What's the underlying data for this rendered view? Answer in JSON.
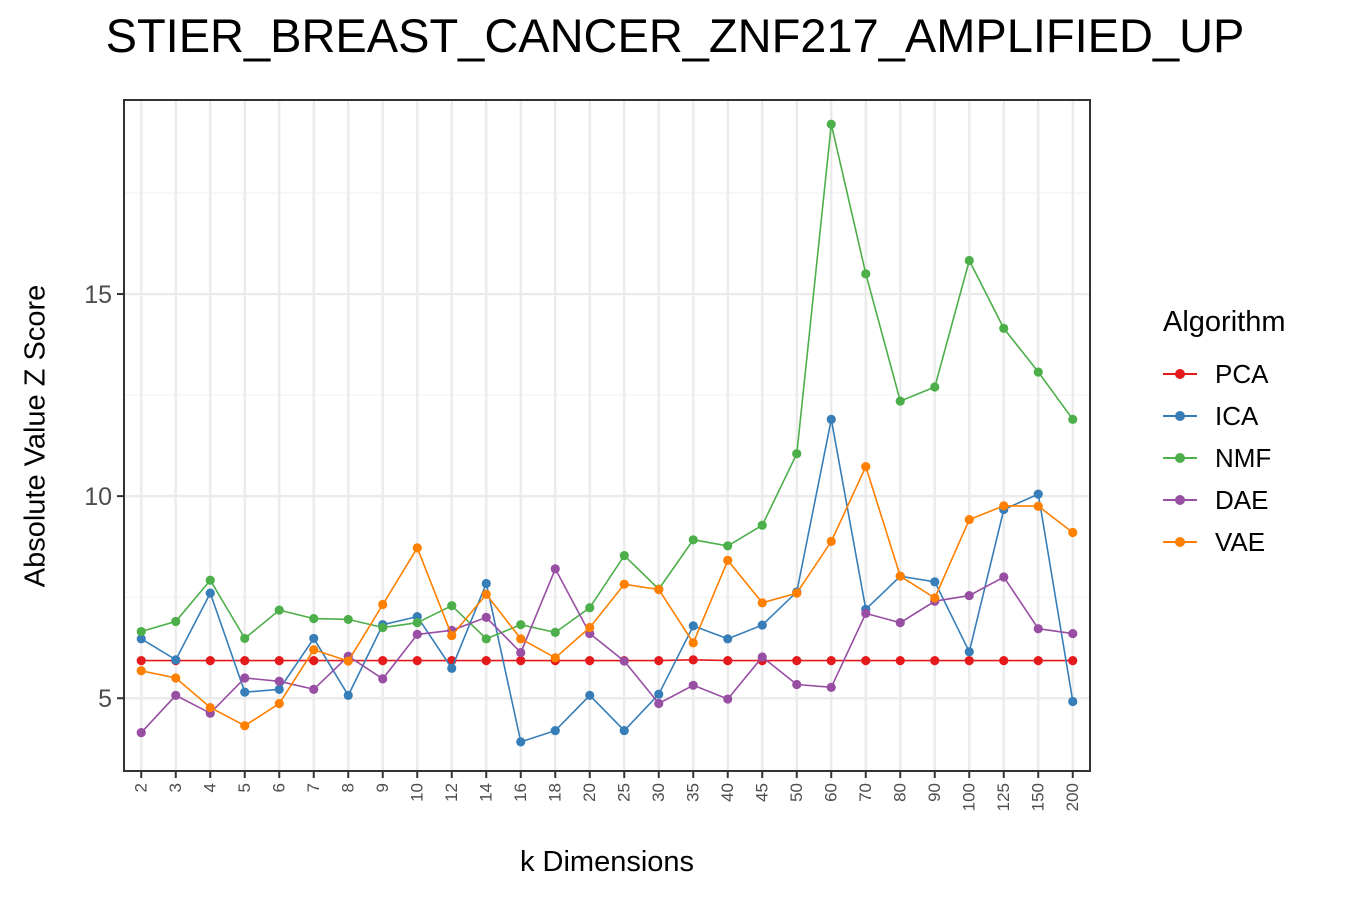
{
  "chart_data": {
    "type": "line",
    "title": "STIER_BREAST_CANCER_ZNF217_AMPLIFIED_UP",
    "xlabel": "k Dimensions",
    "ylabel": "Absolute Value Z Score",
    "categories": [
      "2",
      "3",
      "4",
      "5",
      "6",
      "7",
      "8",
      "9",
      "10",
      "12",
      "14",
      "16",
      "18",
      "20",
      "25",
      "30",
      "35",
      "40",
      "45",
      "50",
      "60",
      "70",
      "80",
      "90",
      "100",
      "125",
      "150",
      "200"
    ],
    "ylim": [
      3.2,
      19.8
    ],
    "yticks": [
      5,
      10,
      15
    ],
    "grid": true,
    "legend_title": "Algorithm",
    "legend_position": "right",
    "series": [
      {
        "name": "PCA",
        "color": "#e41a1c",
        "values": [
          5.93,
          5.93,
          5.93,
          5.93,
          5.93,
          5.93,
          5.93,
          5.93,
          5.93,
          5.93,
          5.93,
          5.93,
          5.93,
          5.93,
          5.93,
          5.93,
          5.95,
          5.93,
          5.93,
          5.93,
          5.93,
          5.93,
          5.93,
          5.93,
          5.93,
          5.93,
          5.93,
          5.93
        ]
      },
      {
        "name": "ICA",
        "color": "#377eb8",
        "values": [
          6.47,
          5.95,
          7.6,
          5.15,
          5.22,
          6.48,
          5.07,
          6.82,
          7.02,
          5.74,
          7.84,
          3.92,
          4.2,
          5.07,
          4.2,
          5.1,
          6.79,
          6.47,
          6.81,
          7.63,
          11.9,
          7.2,
          8.02,
          7.88,
          6.15,
          9.67,
          10.05,
          4.92
        ]
      },
      {
        "name": "NMF",
        "color": "#4daf4a",
        "values": [
          6.65,
          6.9,
          7.92,
          6.48,
          7.18,
          6.97,
          6.95,
          6.75,
          6.87,
          7.29,
          6.47,
          6.82,
          6.63,
          7.24,
          8.53,
          7.7,
          8.92,
          8.77,
          9.28,
          11.05,
          19.2,
          15.5,
          12.35,
          12.7,
          15.83,
          14.15,
          13.07,
          11.9
        ]
      },
      {
        "name": "DAE",
        "color": "#984ea3",
        "values": [
          4.15,
          5.07,
          4.63,
          5.5,
          5.42,
          5.22,
          6.04,
          5.48,
          6.58,
          6.68,
          7.0,
          6.13,
          8.2,
          6.6,
          5.92,
          4.87,
          5.32,
          4.98,
          6.02,
          5.34,
          5.27,
          7.1,
          6.87,
          7.4,
          7.54,
          8.0,
          6.72,
          6.6
        ]
      },
      {
        "name": "VAE",
        "color": "#ff7f00",
        "values": [
          5.68,
          5.5,
          4.77,
          4.32,
          4.87,
          6.2,
          5.92,
          7.32,
          8.72,
          6.55,
          7.57,
          6.47,
          6.0,
          6.75,
          7.82,
          7.69,
          6.37,
          8.41,
          7.36,
          7.6,
          8.88,
          10.73,
          8.02,
          7.48,
          9.42,
          9.76,
          9.75,
          9.1
        ]
      }
    ]
  }
}
